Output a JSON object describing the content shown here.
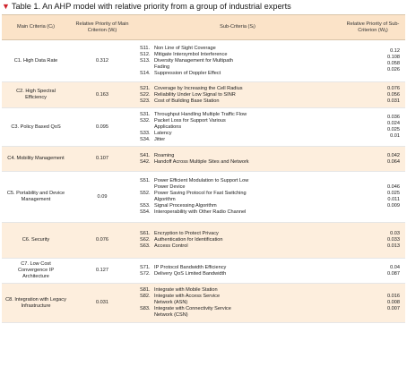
{
  "caption": {
    "marker": "▼",
    "text": "Table 1. An AHP model with relative priority from a group of industrial experts"
  },
  "headers": {
    "main": "Main Criteria (Cᵢ)",
    "priority": "Relative Priority of Main Criterion (Wᵢ)",
    "sub": "Sub-Criteria (Sᵢ)",
    "sub_priority": "Relative Priority of Sub-Criterion (Wᵢⱼ)"
  },
  "rows": [
    {
      "main": "C1. High Data Rate",
      "priority": "0.312",
      "subs": [
        {
          "code": "S11.",
          "text": "Non Line of Sight Coverage"
        },
        {
          "code": "S12.",
          "text": "Mitigate Intersymbol Interference"
        },
        {
          "code": "S13.",
          "text": "Diversity Management for Multipath"
        },
        {
          "code": "",
          "text": "Fading"
        },
        {
          "code": "S14.",
          "text": "Suppression of Doppler Effect"
        }
      ],
      "values": [
        "0.12",
        "0.108",
        "0.058",
        "0.026"
      ]
    },
    {
      "main": "C2. High Spectral Efficiency",
      "priority": "0.163",
      "subs": [
        {
          "code": "S21.",
          "text": "Coverage by Increasing the Cell Radius"
        },
        {
          "code": "S22.",
          "text": "Reliability Under Low Signal to SINR"
        },
        {
          "code": "S23.",
          "text": "Cost of Building Base Station"
        }
      ],
      "values": [
        "0.076",
        "0.056",
        "0.031"
      ]
    },
    {
      "main": "C3. Policy Based QoS",
      "priority": "0.095",
      "subs": [
        {
          "code": "S31.",
          "text": "Throughput Handling Multiple Traffic Flow"
        },
        {
          "code": "S32.",
          "text": "Packet Loss for Support Various"
        },
        {
          "code": "",
          "text": "Applications"
        },
        {
          "code": "S33.",
          "text": "Latency"
        },
        {
          "code": "S34.",
          "text": "Jitter"
        }
      ],
      "values": [
        "0.036",
        "0.024",
        "0.025",
        "0.01"
      ]
    },
    {
      "main": "C4. Mobility Management",
      "priority": "0.107",
      "subs": [
        {
          "code": "S41.",
          "text": "Roaming"
        },
        {
          "code": "S42.",
          "text": "Handoff Across Multiple Sites and Network"
        }
      ],
      "values": [
        "0.042",
        "0.064"
      ]
    },
    {
      "main": "C5. Portability and Device Management",
      "priority": "0.09",
      "subs": [
        {
          "code": "S51.",
          "text": "Power Efficient Modulation to Support Low"
        },
        {
          "code": "",
          "text": "Power Device"
        },
        {
          "code": "S52.",
          "text": "Power Saving Protocol for Fast Switching"
        },
        {
          "code": "",
          "text": "Algorithm"
        },
        {
          "code": "S53.",
          "text": "Signal Processing Algorithm"
        },
        {
          "code": "S54.",
          "text": "Interoperability with Other Radio Channel"
        }
      ],
      "values": [
        "0.046",
        "0.025",
        "0.011",
        "0.009"
      ]
    },
    {
      "main": "C6. Security",
      "priority": "0.076",
      "subs": [
        {
          "code": "S61.",
          "text": "Encryption to Protect Privacy"
        },
        {
          "code": "S62.",
          "text": "Authentication for Identification"
        },
        {
          "code": "S63.",
          "text": "Access Control"
        }
      ],
      "values": [
        "0.03",
        "0.033",
        "0.013"
      ]
    },
    {
      "main": "C7. Low Cost Convergence IP Architecture",
      "priority": "0.127",
      "subs": [
        {
          "code": "S71.",
          "text": "IP Protocol Bandwidth Efficiency"
        },
        {
          "code": "S72.",
          "text": "Delivery QoS Limited Bandwidth"
        }
      ],
      "values": [
        "0.04",
        "0.087"
      ]
    },
    {
      "main": "C8. Integration with Legacy Infrastructure",
      "priority": "0.031",
      "subs": [
        {
          "code": "S81.",
          "text": "Integrate with Mobile Station"
        },
        {
          "code": "S82.",
          "text": "Integrate with Access Service"
        },
        {
          "code": "",
          "text": "Network (ASN)"
        },
        {
          "code": "S83.",
          "text": "Integrate with Connectivity Service"
        },
        {
          "code": "",
          "text": "Network (CSN)"
        }
      ],
      "values": [
        "0.016",
        "0.008",
        "0.007"
      ]
    }
  ]
}
